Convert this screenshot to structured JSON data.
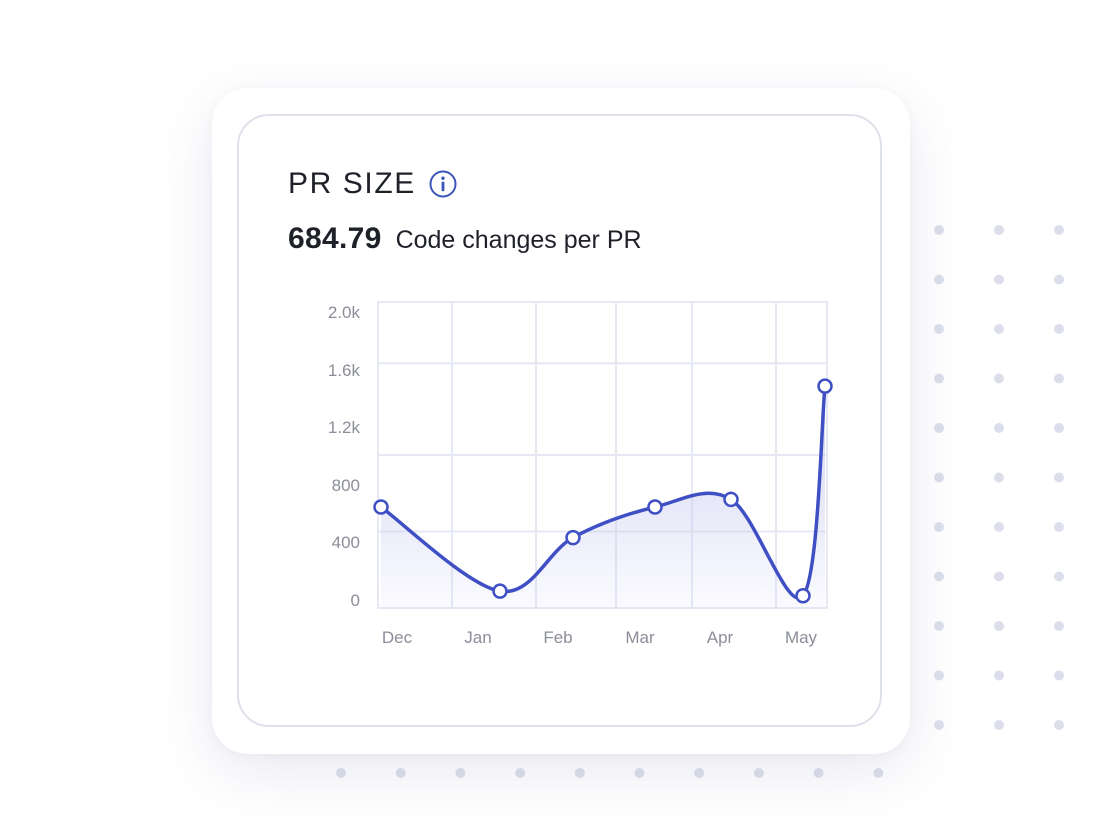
{
  "widget": {
    "title": "PR SIZE",
    "info_icon": "info-circle-icon",
    "metric_value": "684.79",
    "metric_label": "Code changes per PR"
  },
  "colors": {
    "line": "#3f4fc4",
    "area_top": "#c9cdf1",
    "grid": "#e6e8f3",
    "axis_text": "#8b8e99",
    "dot_pattern": "#dcdfeb"
  },
  "chart_data": {
    "type": "area",
    "title": "PR SIZE",
    "categories": [
      "Dec",
      "Jan",
      "Feb",
      "Mar",
      "Apr",
      "May"
    ],
    "y_tick_labels": [
      "0",
      "400",
      "800",
      "1.2k",
      "1.6k",
      "2.0k"
    ],
    "y_ticks": [
      0,
      400,
      800,
      1200,
      1600,
      2000
    ],
    "ylim": [
      0,
      2000
    ],
    "grid": true,
    "series": [
      {
        "points": [
          {
            "x": "Dec",
            "y": 660
          },
          {
            "x": "Jan",
            "y": 110
          },
          {
            "x": "Feb",
            "y": 460
          },
          {
            "x": "Mar",
            "y": 660
          },
          {
            "x": "Apr",
            "y": 710
          },
          {
            "x": "May",
            "y": 80
          },
          {
            "x": "May",
            "y": 1450
          }
        ]
      }
    ],
    "xlabel": "",
    "ylabel": ""
  }
}
